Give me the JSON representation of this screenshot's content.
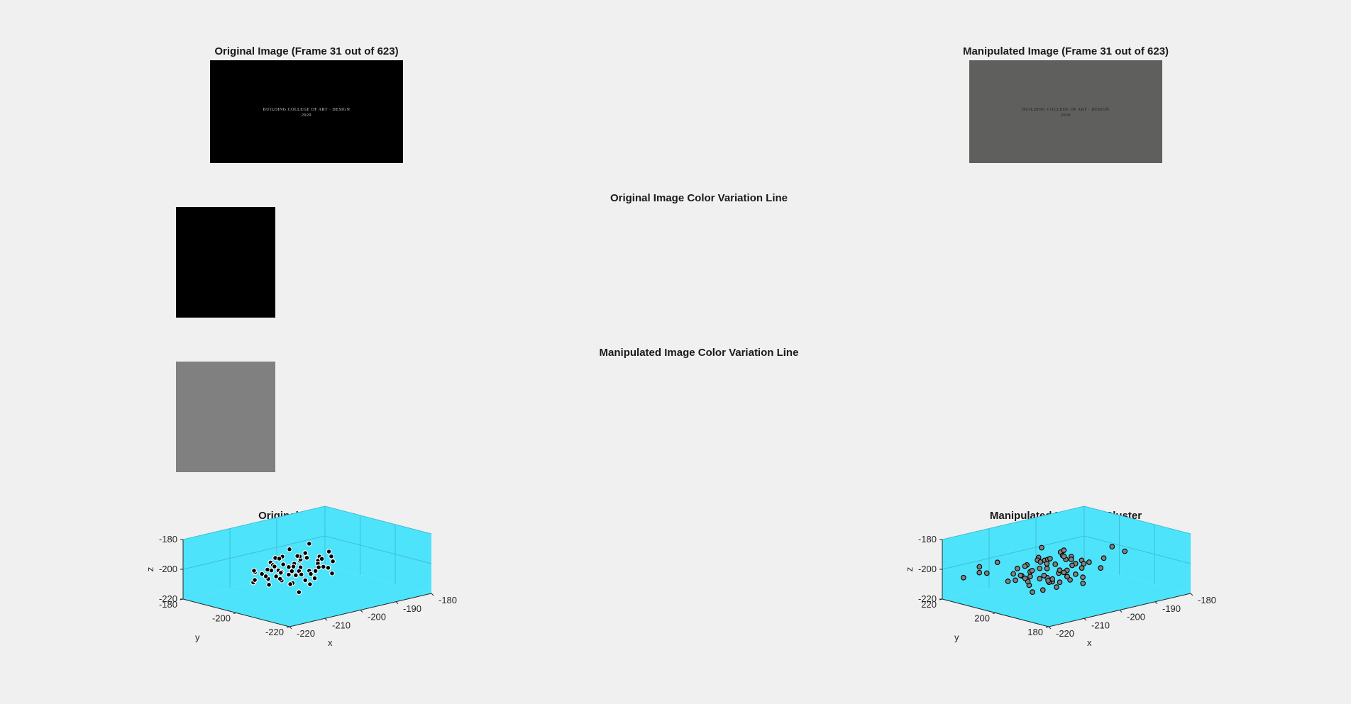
{
  "window": {
    "background": "#f0f0f0"
  },
  "original_frame": {
    "title": "Original Image (Frame 31 out of 623)",
    "bg": "#000000",
    "text_color": "#cfcfcf",
    "caption_line1": "BUILDING COLLEGE OF ART · DESIGN",
    "caption_line2": "2020"
  },
  "manipulated_frame": {
    "title": "Manipulated Image (Frame 31 out of 623)",
    "bg": "#5f605e",
    "text_color": "#1c1c1c",
    "caption_line1": "BUILDING COLLEGE OF ART · DESIGN",
    "caption_line2": "2020"
  },
  "original_color_line": {
    "title": "Original Image Color Variation Line",
    "color": "#000000"
  },
  "manipulated_color_line": {
    "title": "Manipulated Image Color Variation Line",
    "color": "#808080"
  },
  "chart_data": [
    {
      "type": "scatter",
      "title": "Original 3D Cluster",
      "xlabel": "x",
      "ylabel": "y",
      "zlabel": "z",
      "xlim": [
        -225,
        -180
      ],
      "ylim": [
        -225,
        -180
      ],
      "zlim": [
        -220,
        -180
      ],
      "xticks": [
        "-220",
        "-210",
        "-200",
        "-190",
        "-180"
      ],
      "yticks": [
        "-220",
        "-200",
        "-180"
      ],
      "zticks": [
        "-180",
        "-200",
        "-220"
      ],
      "background": "#4de3fb",
      "marker_face": "#000000",
      "marker_edge": "#ffffff",
      "grid": true,
      "points": [
        {
          "x": -212,
          "y": -200,
          "z": -199
        },
        {
          "x": -205,
          "y": -198,
          "z": -201
        },
        {
          "x": -208,
          "y": -202,
          "z": -203
        },
        {
          "x": -200,
          "y": -196,
          "z": -200
        },
        {
          "x": -210,
          "y": -206,
          "z": -198
        },
        {
          "x": -203,
          "y": -204,
          "z": -202
        },
        {
          "x": -215,
          "y": -197,
          "z": -200
        },
        {
          "x": -198,
          "y": -201,
          "z": -199
        },
        {
          "x": -206,
          "y": -195,
          "z": -204
        },
        {
          "x": -211,
          "y": -203,
          "z": -205
        },
        {
          "x": -202,
          "y": -199,
          "z": -197
        },
        {
          "x": -209,
          "y": -201,
          "z": -196
        },
        {
          "x": -204,
          "y": -208,
          "z": -200
        },
        {
          "x": -213,
          "y": -205,
          "z": -202
        },
        {
          "x": -197,
          "y": -204,
          "z": -203
        },
        {
          "x": -207,
          "y": -193,
          "z": -199
        },
        {
          "x": -201,
          "y": -202,
          "z": -206
        },
        {
          "x": -214,
          "y": -201,
          "z": -197
        },
        {
          "x": -199,
          "y": -197,
          "z": -195
        },
        {
          "x": -205,
          "y": -205,
          "z": -207
        },
        {
          "x": -210,
          "y": -199,
          "z": -192
        },
        {
          "x": -203,
          "y": -200,
          "z": -194
        },
        {
          "x": -216,
          "y": -204,
          "z": -201
        },
        {
          "x": -196,
          "y": -199,
          "z": -198
        },
        {
          "x": -208,
          "y": -207,
          "z": -196
        },
        {
          "x": -212,
          "y": -196,
          "z": -203
        },
        {
          "x": -200,
          "y": -206,
          "z": -200
        },
        {
          "x": -206,
          "y": -201,
          "z": -210
        },
        {
          "x": -194,
          "y": -202,
          "z": -201
        },
        {
          "x": -217,
          "y": -199,
          "z": -205
        },
        {
          "x": -204,
          "y": -197,
          "z": -190
        },
        {
          "x": -209,
          "y": -204,
          "z": -208
        },
        {
          "x": -201,
          "y": -195,
          "z": -202
        },
        {
          "x": -211,
          "y": -209,
          "z": -199
        },
        {
          "x": -198,
          "y": -207,
          "z": -205
        },
        {
          "x": -207,
          "y": -198,
          "z": -193
        },
        {
          "x": -213,
          "y": -202,
          "z": -194
        },
        {
          "x": -195,
          "y": -197,
          "z": -204
        },
        {
          "x": -202,
          "y": -203,
          "z": -212
        },
        {
          "x": -215,
          "y": -206,
          "z": -199
        },
        {
          "x": -205,
          "y": -194,
          "z": -197
        },
        {
          "x": -200,
          "y": -200,
          "z": -187
        },
        {
          "x": -210,
          "y": -195,
          "z": -206
        },
        {
          "x": -203,
          "y": -208,
          "z": -198
        },
        {
          "x": -193,
          "y": -200,
          "z": -199
        },
        {
          "x": -218,
          "y": -201,
          "z": -202
        },
        {
          "x": -206,
          "y": -203,
          "z": -191
        },
        {
          "x": -199,
          "y": -204,
          "z": -196
        },
        {
          "x": -212,
          "y": -199,
          "z": -209
        },
        {
          "x": -204,
          "y": -201,
          "z": -203
        },
        {
          "x": -208,
          "y": -196,
          "z": -200
        },
        {
          "x": -201,
          "y": -198,
          "z": -208
        },
        {
          "x": -214,
          "y": -207,
          "z": -196
        },
        {
          "x": -197,
          "y": -195,
          "z": -200
        },
        {
          "x": -209,
          "y": -200,
          "z": -202
        },
        {
          "x": -205,
          "y": -209,
          "z": -204
        },
        {
          "x": -216,
          "y": -198,
          "z": -198
        },
        {
          "x": -202,
          "y": -196,
          "z": -203
        },
        {
          "x": -207,
          "y": -205,
          "z": -214
        },
        {
          "x": -196,
          "y": -203,
          "z": -193
        }
      ]
    },
    {
      "type": "scatter",
      "title": "Manipulated Image 3D Cluster",
      "xlabel": "x",
      "ylabel": "y",
      "zlabel": "z",
      "xlim": [
        -225,
        -180
      ],
      "ylim": [
        175,
        225
      ],
      "zlim": [
        -220,
        -180
      ],
      "xticks": [
        "-220",
        "-210",
        "-200",
        "-190",
        "-180"
      ],
      "yticks": [
        "180",
        "200",
        "220"
      ],
      "zticks": [
        "-180",
        "-200",
        "-220"
      ],
      "background": "#4de3fb",
      "marker_face": "#808080",
      "marker_edge": "#000000",
      "grid": true,
      "points": [
        {
          "x": -208,
          "y": 201,
          "z": -199
        },
        {
          "x": -203,
          "y": 199,
          "z": -202
        },
        {
          "x": -212,
          "y": 203,
          "z": -200
        },
        {
          "x": -205,
          "y": 196,
          "z": -204
        },
        {
          "x": -200,
          "y": 204,
          "z": -198
        },
        {
          "x": -210,
          "y": 198,
          "z": -203
        },
        {
          "x": -206,
          "y": 205,
          "z": -196
        },
        {
          "x": -214,
          "y": 200,
          "z": -201
        },
        {
          "x": -202,
          "y": 202,
          "z": -205
        },
        {
          "x": -209,
          "y": 194,
          "z": -199
        },
        {
          "x": -204,
          "y": 207,
          "z": -200
        },
        {
          "x": -211,
          "y": 206,
          "z": -197
        },
        {
          "x": -199,
          "y": 198,
          "z": -202
        },
        {
          "x": -207,
          "y": 200,
          "z": -208
        },
        {
          "x": -213,
          "y": 197,
          "z": -195
        },
        {
          "x": -201,
          "y": 205,
          "z": -193
        },
        {
          "x": -216,
          "y": 204,
          "z": -204
        },
        {
          "x": -205,
          "y": 192,
          "z": -201
        },
        {
          "x": -208,
          "y": 208,
          "z": -203
        },
        {
          "x": -203,
          "y": 195,
          "z": -196
        },
        {
          "x": -210,
          "y": 202,
          "z": -191
        },
        {
          "x": -197,
          "y": 201,
          "z": -199
        },
        {
          "x": -215,
          "y": 199,
          "z": -206
        },
        {
          "x": -206,
          "y": 203,
          "z": -210
        },
        {
          "x": -212,
          "y": 209,
          "z": -200
        },
        {
          "x": -200,
          "y": 196,
          "z": -207
        },
        {
          "x": -204,
          "y": 199,
          "z": -188
        },
        {
          "x": -218,
          "y": 202,
          "z": -198
        },
        {
          "x": -207,
          "y": 193,
          "z": -202
        },
        {
          "x": -202,
          "y": 206,
          "z": -201
        },
        {
          "x": -209,
          "y": 204,
          "z": -194
        },
        {
          "x": -195,
          "y": 203,
          "z": -203
        },
        {
          "x": -213,
          "y": 195,
          "z": -199
        },
        {
          "x": -205,
          "y": 201,
          "z": -213
        },
        {
          "x": -211,
          "y": 200,
          "z": -204
        },
        {
          "x": -199,
          "y": 207,
          "z": -197
        },
        {
          "x": -203,
          "y": 197,
          "z": -192
        },
        {
          "x": -217,
          "y": 206,
          "z": -205
        },
        {
          "x": -206,
          "y": 198,
          "z": -200
        },
        {
          "x": -201,
          "y": 200,
          "z": -196
        },
        {
          "x": -214,
          "y": 204,
          "z": -202
        },
        {
          "x": -208,
          "y": 195,
          "z": -206
        },
        {
          "x": -190,
          "y": 201,
          "z": -201
        },
        {
          "x": -186,
          "y": 203,
          "z": -196
        },
        {
          "x": -184,
          "y": 200,
          "z": -199
        },
        {
          "x": -222,
          "y": 212,
          "z": -195
        },
        {
          "x": -220,
          "y": 215,
          "z": -201
        },
        {
          "x": -223,
          "y": 218,
          "z": -204
        },
        {
          "x": -219,
          "y": 208,
          "z": -192
        },
        {
          "x": -221,
          "y": 210,
          "z": -199
        },
        {
          "x": -216,
          "y": 196,
          "z": -209
        },
        {
          "x": -193,
          "y": 198,
          "z": -205
        },
        {
          "x": -207,
          "y": 205,
          "z": -187
        },
        {
          "x": -202,
          "y": 193,
          "z": -209
        },
        {
          "x": -212,
          "y": 197,
          "z": -210
        },
        {
          "x": -204,
          "y": 210,
          "z": -200
        },
        {
          "x": -210,
          "y": 207,
          "z": -209
        },
        {
          "x": -198,
          "y": 204,
          "z": -203
        },
        {
          "x": -215,
          "y": 201,
          "z": -194
        },
        {
          "x": -206,
          "y": 196,
          "z": -190
        },
        {
          "x": -200,
          "y": 202,
          "z": -211
        },
        {
          "x": -209,
          "y": 199,
          "z": -206
        },
        {
          "x": -203,
          "y": 208,
          "z": -198
        },
        {
          "x": -213,
          "y": 206,
          "z": -203
        },
        {
          "x": -196,
          "y": 199,
          "z": -200
        },
        {
          "x": -211,
          "y": 194,
          "z": -202
        },
        {
          "x": -205,
          "y": 204,
          "z": -195
        },
        {
          "x": -217,
          "y": 198,
          "z": -200
        }
      ]
    }
  ]
}
